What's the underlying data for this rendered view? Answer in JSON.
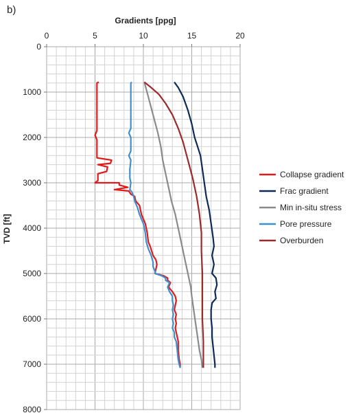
{
  "panel_label": "b)",
  "chart_data": {
    "type": "line",
    "title": "",
    "xlabel": "Gradients [ppg]",
    "ylabel": "TVD [ft]",
    "x_axis_position": "top",
    "y_inverted": true,
    "xlim": [
      0,
      20
    ],
    "ylim": [
      0,
      8000
    ],
    "x_ticks": [
      0,
      5,
      10,
      15,
      20
    ],
    "y_ticks": [
      0,
      1000,
      2000,
      3000,
      4000,
      5000,
      6000,
      7000,
      8000
    ],
    "x_tick_labels": [
      "0",
      "5",
      "10",
      "15",
      "20"
    ],
    "y_tick_labels": [
      "0",
      "1000",
      "2000",
      "3000",
      "4000",
      "5000",
      "6000",
      "7000",
      "8000"
    ],
    "grid": true,
    "legend_position": "right",
    "series": [
      {
        "name": "Collapse gradient",
        "color": "#e01b1b",
        "points": [
          [
            5.4,
            780
          ],
          [
            5.2,
            800
          ],
          [
            5.2,
            1000
          ],
          [
            5.2,
            1500
          ],
          [
            5.2,
            1850
          ],
          [
            5.0,
            1950
          ],
          [
            5.2,
            2050
          ],
          [
            5.2,
            2400
          ],
          [
            5.2,
            2450
          ],
          [
            6.7,
            2500
          ],
          [
            6.6,
            2570
          ],
          [
            5.3,
            2600
          ],
          [
            6.3,
            2650
          ],
          [
            6.2,
            2750
          ],
          [
            5.3,
            2800
          ],
          [
            5.3,
            2950
          ],
          [
            5.0,
            3000
          ],
          [
            7.5,
            3000
          ],
          [
            7.5,
            3050
          ],
          [
            8.4,
            3100
          ],
          [
            7.0,
            3150
          ],
          [
            8.5,
            3180
          ],
          [
            8.7,
            3250
          ],
          [
            9.1,
            3300
          ],
          [
            9.2,
            3400
          ],
          [
            9.6,
            3500
          ],
          [
            9.8,
            3700
          ],
          [
            10.2,
            3900
          ],
          [
            10.4,
            4100
          ],
          [
            10.5,
            4300
          ],
          [
            10.7,
            4400
          ],
          [
            11.0,
            4600
          ],
          [
            11.3,
            4700
          ],
          [
            11.4,
            4800
          ],
          [
            11.3,
            4900
          ],
          [
            11.2,
            5000
          ],
          [
            12.1,
            5050
          ],
          [
            12.5,
            5100
          ],
          [
            12.5,
            5150
          ],
          [
            12.8,
            5200
          ],
          [
            12.6,
            5300
          ],
          [
            13.0,
            5400
          ],
          [
            13.3,
            5500
          ],
          [
            13.4,
            5600
          ],
          [
            13.3,
            5700
          ],
          [
            13.2,
            5800
          ],
          [
            13.4,
            5900
          ],
          [
            13.3,
            6000
          ],
          [
            13.4,
            6100
          ],
          [
            13.3,
            6200
          ],
          [
            13.4,
            6300
          ],
          [
            13.5,
            6400
          ],
          [
            13.6,
            6500
          ],
          [
            13.6,
            6700
          ],
          [
            13.7,
            6900
          ],
          [
            13.8,
            7000
          ],
          [
            13.8,
            7080
          ]
        ]
      },
      {
        "name": "Frac gradient",
        "color": "#0c2a55",
        "points": [
          [
            13.2,
            780
          ],
          [
            13.6,
            900
          ],
          [
            14.1,
            1100
          ],
          [
            14.6,
            1400
          ],
          [
            15.0,
            1700
          ],
          [
            15.3,
            2000
          ],
          [
            15.6,
            2200
          ],
          [
            15.9,
            2400
          ],
          [
            16.1,
            2700
          ],
          [
            16.3,
            3000
          ],
          [
            16.5,
            3300
          ],
          [
            16.8,
            3600
          ],
          [
            17.0,
            3900
          ],
          [
            17.2,
            4200
          ],
          [
            17.3,
            4400
          ],
          [
            17.1,
            4600
          ],
          [
            17.3,
            4800
          ],
          [
            17.1,
            5000
          ],
          [
            17.5,
            5100
          ],
          [
            17.6,
            5250
          ],
          [
            17.4,
            5400
          ],
          [
            17.5,
            5550
          ],
          [
            17.1,
            5650
          ],
          [
            17.0,
            5800
          ],
          [
            17.0,
            6000
          ],
          [
            17.1,
            6200
          ],
          [
            17.1,
            6400
          ],
          [
            17.2,
            6600
          ],
          [
            17.3,
            6800
          ],
          [
            17.4,
            7000
          ],
          [
            17.4,
            7080
          ]
        ]
      },
      {
        "name": "Min in-situ stress",
        "color": "#8a8a8a",
        "points": [
          [
            10.1,
            780
          ],
          [
            10.5,
            1100
          ],
          [
            11.0,
            1500
          ],
          [
            11.5,
            1900
          ],
          [
            11.8,
            2200
          ],
          [
            12.0,
            2500
          ],
          [
            12.3,
            2800
          ],
          [
            12.6,
            3100
          ],
          [
            12.9,
            3400
          ],
          [
            13.3,
            3700
          ],
          [
            13.7,
            4100
          ],
          [
            14.0,
            4400
          ],
          [
            14.3,
            4700
          ],
          [
            14.6,
            5000
          ],
          [
            14.9,
            5300
          ],
          [
            15.0,
            5500
          ],
          [
            15.2,
            5800
          ],
          [
            15.4,
            6100
          ],
          [
            15.6,
            6400
          ],
          [
            15.8,
            6700
          ],
          [
            16.0,
            6900
          ],
          [
            16.1,
            7080
          ]
        ]
      },
      {
        "name": "Pore pressure",
        "color": "#3d8fd0",
        "points": [
          [
            8.8,
            780
          ],
          [
            8.7,
            800
          ],
          [
            8.7,
            1000
          ],
          [
            8.7,
            1500
          ],
          [
            8.7,
            1800
          ],
          [
            8.5,
            1900
          ],
          [
            8.7,
            2000
          ],
          [
            8.7,
            2300
          ],
          [
            8.5,
            2400
          ],
          [
            8.7,
            2500
          ],
          [
            8.6,
            2700
          ],
          [
            8.6,
            2900
          ],
          [
            8.7,
            3000
          ],
          [
            8.6,
            3150
          ],
          [
            8.8,
            3200
          ],
          [
            9.0,
            3300
          ],
          [
            9.1,
            3400
          ],
          [
            9.4,
            3550
          ],
          [
            9.6,
            3700
          ],
          [
            10.0,
            3900
          ],
          [
            10.2,
            4100
          ],
          [
            10.3,
            4300
          ],
          [
            10.5,
            4450
          ],
          [
            10.8,
            4600
          ],
          [
            11.0,
            4750
          ],
          [
            11.0,
            4850
          ],
          [
            11.2,
            4950
          ],
          [
            11.2,
            5000
          ],
          [
            11.9,
            5050
          ],
          [
            12.3,
            5100
          ],
          [
            12.3,
            5150
          ],
          [
            12.7,
            5200
          ],
          [
            12.5,
            5300
          ],
          [
            12.7,
            5400
          ],
          [
            13.0,
            5500
          ],
          [
            13.0,
            5600
          ],
          [
            13.1,
            5700
          ],
          [
            13.0,
            5800
          ],
          [
            13.1,
            5900
          ],
          [
            13.0,
            6000
          ],
          [
            13.1,
            6100
          ],
          [
            13.0,
            6200
          ],
          [
            13.2,
            6300
          ],
          [
            13.2,
            6400
          ],
          [
            13.4,
            6500
          ],
          [
            13.5,
            6700
          ],
          [
            13.6,
            6900
          ],
          [
            13.7,
            7000
          ],
          [
            13.8,
            7080
          ]
        ]
      },
      {
        "name": "Overburden",
        "color": "#9c2a2a",
        "points": [
          [
            10.1,
            780
          ],
          [
            10.8,
            900
          ],
          [
            11.6,
            1050
          ],
          [
            12.3,
            1250
          ],
          [
            13.0,
            1500
          ],
          [
            13.6,
            1800
          ],
          [
            14.1,
            2100
          ],
          [
            14.6,
            2500
          ],
          [
            15.1,
            2900
          ],
          [
            15.5,
            3300
          ],
          [
            15.8,
            3700
          ],
          [
            16.0,
            4100
          ],
          [
            16.0,
            4500
          ],
          [
            16.1,
            5000
          ],
          [
            16.1,
            5500
          ],
          [
            16.1,
            6000
          ],
          [
            16.2,
            6500
          ],
          [
            16.2,
            7000
          ],
          [
            16.2,
            7080
          ]
        ]
      }
    ]
  }
}
